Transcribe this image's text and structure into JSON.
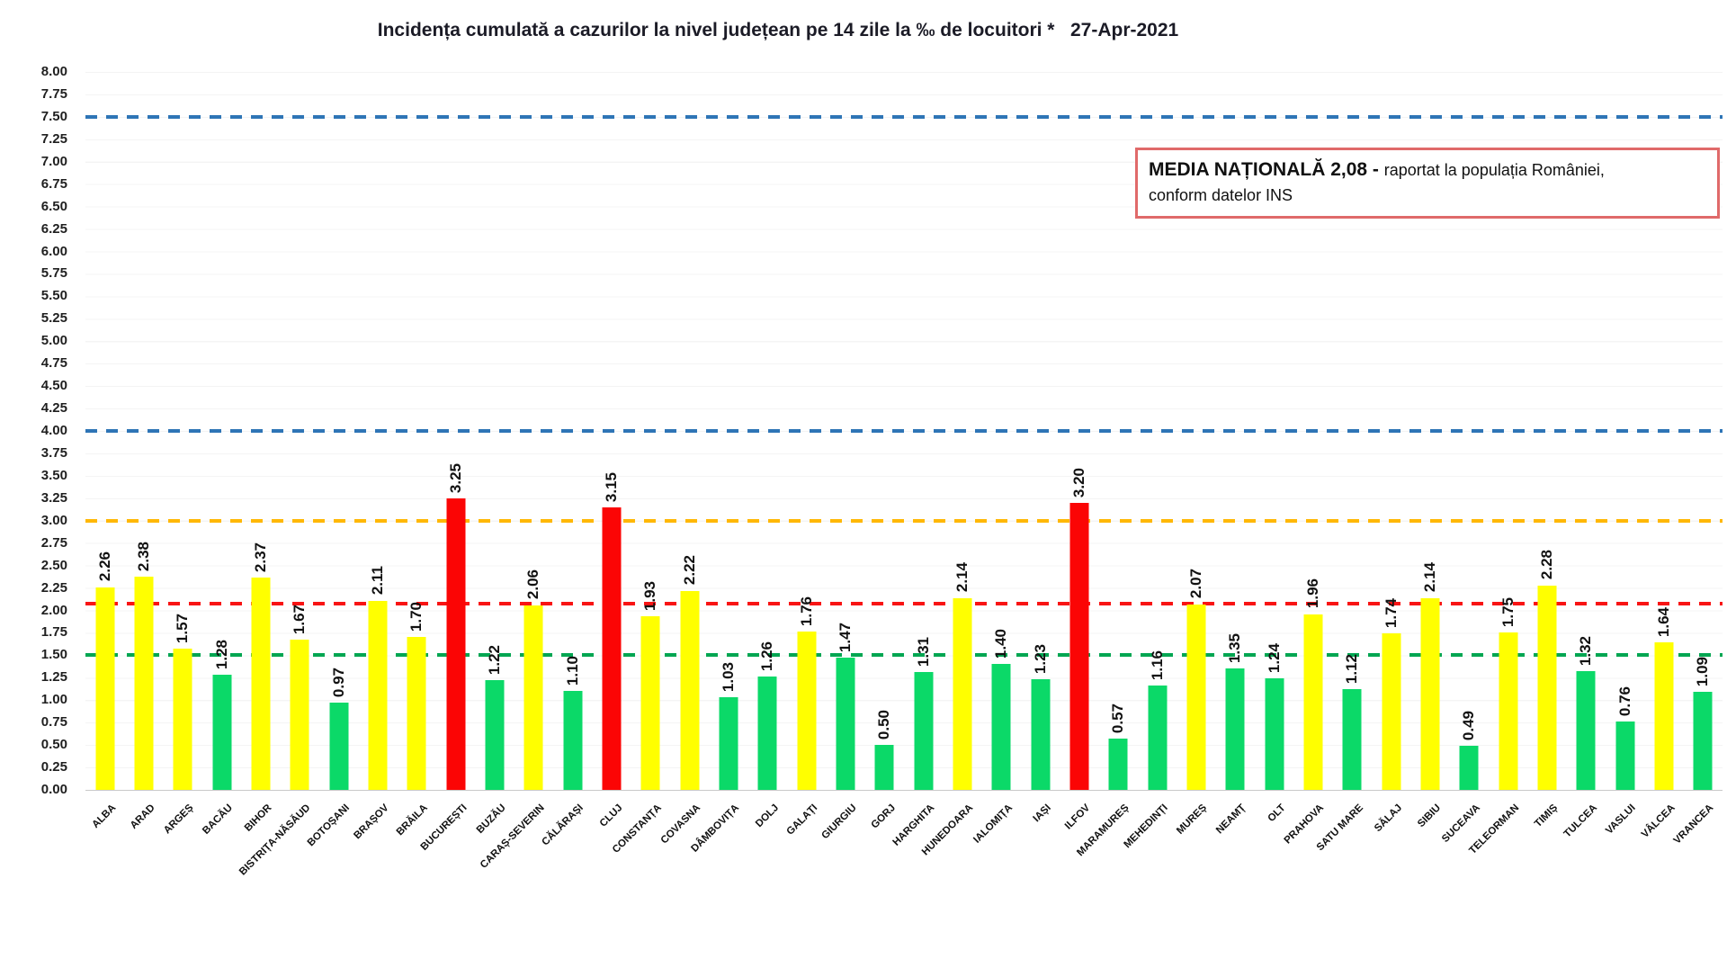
{
  "title": "Incidența cumulată a cazurilor la nivel județean pe 14 zile la ‰ de locuitori *   27-Apr-2021",
  "national_average_box": {
    "bold_text": "MEDIA NAȚIONALĂ  2,08 - ",
    "regular_text": "raportat la populația României,",
    "second_line": "conform datelor INS"
  },
  "chart_data": {
    "type": "bar",
    "title": "Incidența cumulată a cazurilor la nivel județean pe 14 zile la ‰ de locuitori * 27-Apr-2021",
    "date_label": "27-Apr-2021",
    "xlabel": "",
    "ylabel": "",
    "ylim": [
      0,
      8
    ],
    "ytick_step": 0.25,
    "ytick_labels": [
      "8.00",
      "7.75",
      "7.50",
      "7.25",
      "7.00",
      "6.75",
      "6.50",
      "6.25",
      "6.00",
      "5.75",
      "5.50",
      "5.25",
      "5.00",
      "4.75",
      "4.50",
      "4.25",
      "4.00",
      "3.75",
      "3.50",
      "3.25",
      "3.00",
      "2.75",
      "2.50",
      "2.25",
      "2.00",
      "1.75",
      "1.50",
      "1.25",
      "1.00",
      "0.75",
      "0.50",
      "0.25",
      "0.00"
    ],
    "grid": "faint horizontal lines",
    "legend_position": "none",
    "categories": [
      "ALBA",
      "ARAD",
      "ARGEȘ",
      "BACĂU",
      "BIHOR",
      "BISTRIȚA-NĂSĂUD",
      "BOTOȘANI",
      "BRAȘOV",
      "BRĂILA",
      "BUCUREȘTI",
      "BUZĂU",
      "CARAȘ-SEVERIN",
      "CĂLĂRAȘI",
      "CLUJ",
      "CONSTANȚA",
      "COVASNA",
      "DÂMBOVIȚA",
      "DOLJ",
      "GALAȚI",
      "GIURGIU",
      "GORJ",
      "HARGHITA",
      "HUNEDOARA",
      "IALOMIȚA",
      "IAȘI",
      "ILFOV",
      "MARAMUREȘ",
      "MEHEDINȚI",
      "MUREȘ",
      "NEAMȚ",
      "OLT",
      "PRAHOVA",
      "SATU MARE",
      "SĂLAJ",
      "SIBIU",
      "SUCEAVA",
      "TELEORMAN",
      "TIMIȘ",
      "TULCEA",
      "VASLUI",
      "VÂLCEA",
      "VRANCEA"
    ],
    "values": [
      2.26,
      2.38,
      1.57,
      1.28,
      2.37,
      1.67,
      0.97,
      2.11,
      1.7,
      3.25,
      1.22,
      2.06,
      1.1,
      3.15,
      1.93,
      2.22,
      1.03,
      1.26,
      1.76,
      1.47,
      0.5,
      1.31,
      2.14,
      1.4,
      1.23,
      3.2,
      0.57,
      1.16,
      2.07,
      1.35,
      1.24,
      1.96,
      1.12,
      1.74,
      2.14,
      0.49,
      1.75,
      2.28,
      1.32,
      0.76,
      1.64,
      1.09
    ],
    "bar_color_rules": {
      "low_threshold": 1.5,
      "high_threshold": 3.0,
      "low_color": "#0bd968",
      "mid_color": "#ffff00",
      "high_color": "#fb0505"
    },
    "reference_lines": [
      {
        "name": "blue-upper-line",
        "value": 7.5,
        "color": "#2e75b6"
      },
      {
        "name": "blue-lower-line",
        "value": 4.0,
        "color": "#2e75b6"
      },
      {
        "name": "orange-threshold-line",
        "value": 3.0,
        "color": "#ffb805"
      },
      {
        "name": "national-average-line",
        "value": 2.08,
        "color": "#f81414"
      },
      {
        "name": "green-threshold-line",
        "value": 1.5,
        "color": "#00a651"
      }
    ]
  }
}
